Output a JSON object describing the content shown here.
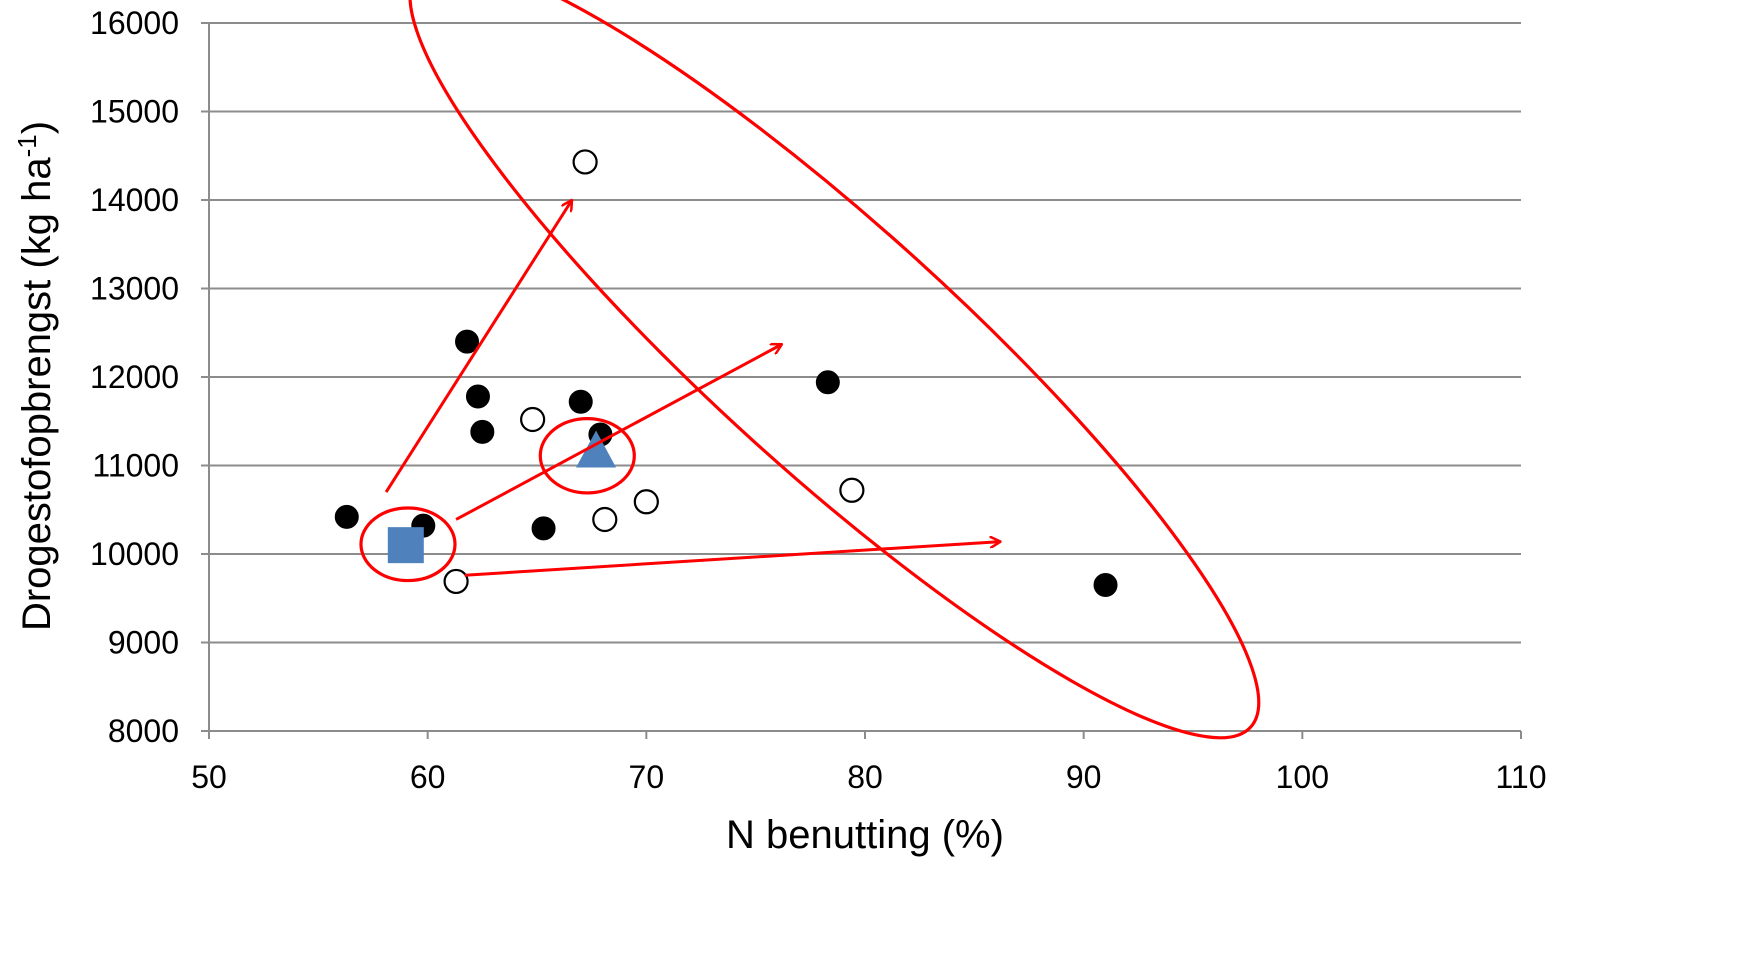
{
  "chart_data": {
    "type": "scatter",
    "title": "",
    "xlabel": "N benutting  (%)",
    "ylabel_main": "Drogestofopbrengst (kg ha",
    "ylabel_sup": "-1",
    "ylabel_close": ")",
    "xlim": [
      50,
      110
    ],
    "ylim": [
      8000,
      16000
    ],
    "x_ticks": [
      50,
      60,
      70,
      80,
      90,
      100,
      110
    ],
    "y_ticks": [
      8000,
      9000,
      10000,
      11000,
      12000,
      13000,
      14000,
      15000,
      16000
    ],
    "grid": "horizontal",
    "series": [
      {
        "marker": "filled-circle",
        "color": "#000000",
        "points": [
          {
            "x": 56.3,
            "y": 10420
          },
          {
            "x": 59.8,
            "y": 10320
          },
          {
            "x": 61.8,
            "y": 12400
          },
          {
            "x": 62.3,
            "y": 11780
          },
          {
            "x": 62.5,
            "y": 11380
          },
          {
            "x": 65.3,
            "y": 10290
          },
          {
            "x": 67.0,
            "y": 11720
          },
          {
            "x": 67.9,
            "y": 11350
          },
          {
            "x": 78.3,
            "y": 11940
          },
          {
            "x": 91.0,
            "y": 9650
          }
        ]
      },
      {
        "marker": "open-circle",
        "color": "#000000",
        "points": [
          {
            "x": 61.3,
            "y": 9690
          },
          {
            "x": 64.8,
            "y": 11520
          },
          {
            "x": 67.2,
            "y": 14430
          },
          {
            "x": 68.1,
            "y": 10390
          },
          {
            "x": 70.0,
            "y": 10590
          },
          {
            "x": 79.4,
            "y": 10720
          }
        ]
      },
      {
        "marker": "square",
        "color": "#4F81BD",
        "points": [
          {
            "x": 59.0,
            "y": 10100
          }
        ]
      },
      {
        "marker": "triangle",
        "color": "#4F81BD",
        "points": [
          {
            "x": 67.7,
            "y": 11170
          }
        ]
      }
    ],
    "annotations": {
      "color": "#FF0000",
      "ellipses": [
        {
          "cx": 59.1,
          "cy": 10110,
          "rx": 2.15,
          "ry": 410,
          "rotate": 0
        },
        {
          "cx": 67.3,
          "cy": 11110,
          "rx": 2.15,
          "ry": 420,
          "rotate": 0
        },
        {
          "cx": 78.6,
          "cy": 12310,
          "rx": 25.7,
          "ry": 1380,
          "rotate": 42.2
        }
      ],
      "arrows": [
        {
          "x1": 58.1,
          "y1": 10700,
          "x2": 66.6,
          "y2": 14000
        },
        {
          "x1": 61.3,
          "y1": 10390,
          "x2": 76.2,
          "y2": 12370
        },
        {
          "x1": 61.7,
          "y1": 9760,
          "x2": 86.2,
          "y2": 10140
        }
      ]
    }
  }
}
